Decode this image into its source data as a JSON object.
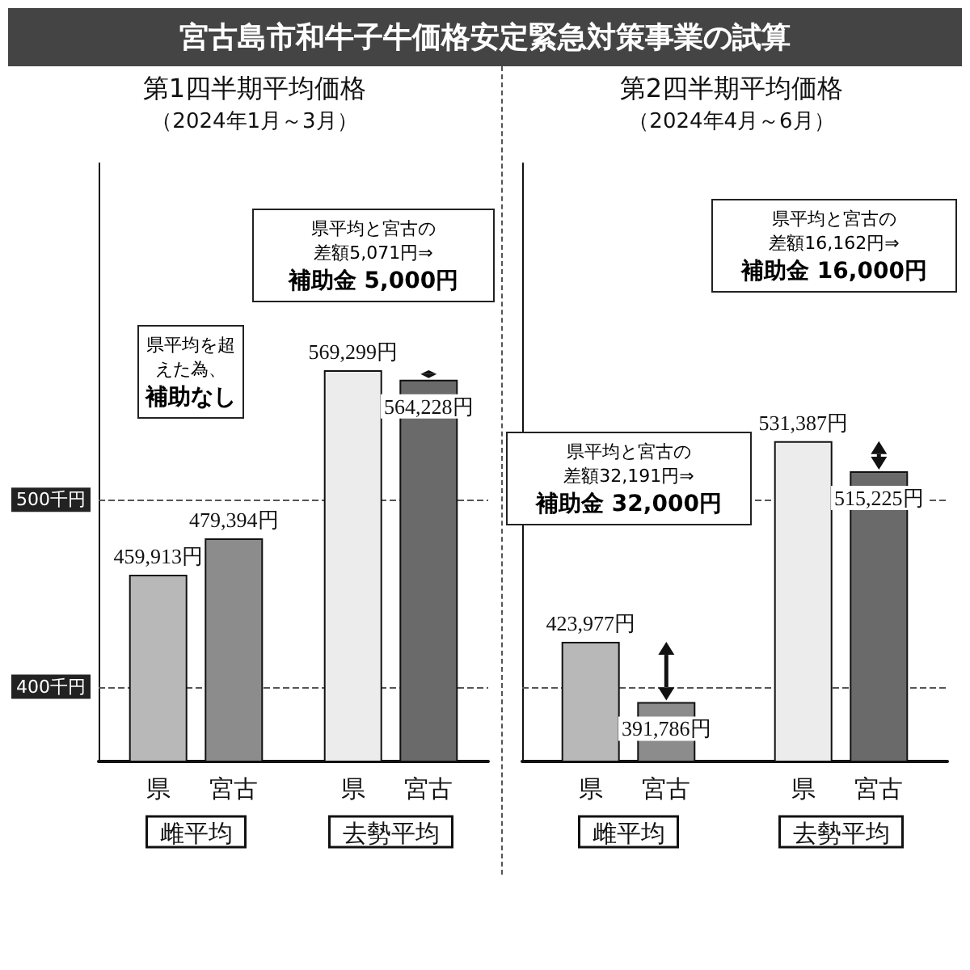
{
  "chart_data": [
    {
      "type": "bar",
      "title": "第1四半期平均価格",
      "subtitle": "（2024年1月～3月）",
      "annotations": [
        "宮古島市和牛子牛価格安定緊急対策事業の試算",
        "県平均を超えた為、",
        "補助なし",
        "県平均と宮古の差額5,071円⇒",
        "補助金 5,000円"
      ],
      "categories": [
        "雌平均",
        "去勢平均"
      ],
      "series": [
        {
          "name": "県",
          "colors": [
            "#b8b8b8",
            "#ececec"
          ],
          "values": [
            459913,
            569299
          ],
          "value_labels": [
            "459,913円",
            "569,299円"
          ]
        },
        {
          "name": "宮古",
          "colors": [
            "#8c8c8c",
            "#6a6a6a"
          ],
          "values": [
            479394,
            564228
          ],
          "value_labels": [
            "479,394円",
            "564,228円"
          ]
        }
      ],
      "ref_lines": [
        {
          "axis": "y",
          "value": 400000,
          "label": "400千円",
          "line_style": "dashed",
          "color": "#555555"
        },
        {
          "axis": "y",
          "value": 500000,
          "label": "500千円",
          "line_style": "dashed",
          "color": "#555555"
        }
      ],
      "ylim": [
        360000,
        680000
      ],
      "legend": false
    },
    {
      "type": "bar",
      "title": "第2四半期平均価格",
      "subtitle": "（2024年4月～6月）",
      "annotations": [
        "県平均と宮古の差額32,191円⇒",
        "補助金 32,000円",
        "県平均と宮古の差額16,162円⇒",
        "補助金 16,000円"
      ],
      "categories": [
        "雌平均",
        "去勢平均"
      ],
      "series": [
        {
          "name": "県",
          "colors": [
            "#b8b8b8",
            "#ececec"
          ],
          "values": [
            423977,
            531387
          ],
          "value_labels": [
            "423,977円",
            "531,387円"
          ]
        },
        {
          "name": "宮古",
          "colors": [
            "#8c8c8c",
            "#6a6a6a"
          ],
          "values": [
            391786,
            515225
          ],
          "value_labels": [
            "391,786円",
            "515,225円"
          ]
        }
      ],
      "ref_lines": [
        {
          "axis": "y",
          "value": 400000,
          "line_style": "dashed",
          "color": "#555555"
        },
        {
          "axis": "y",
          "value": 500000,
          "line_style": "dashed",
          "color": "#555555"
        }
      ],
      "ylim": [
        360000,
        680000
      ],
      "legend": false
    }
  ]
}
